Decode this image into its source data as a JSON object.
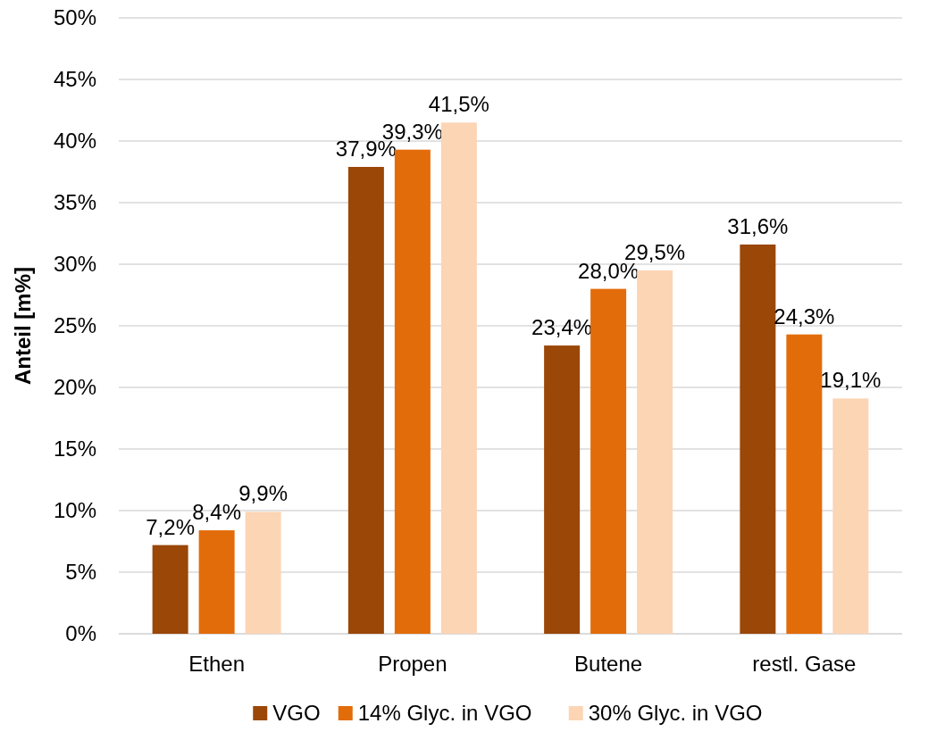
{
  "chart_data": {
    "type": "bar",
    "ylabel": "Anteil [m%]",
    "categories": [
      "Ethen",
      "Propen",
      "Butene",
      "restl. Gase"
    ],
    "series": [
      {
        "name": "VGO",
        "color": "#9a4708",
        "values": [
          7.2,
          37.9,
          23.4,
          31.6
        ],
        "value_labels": [
          "7,2%",
          "37,9%",
          "23,4%",
          "31,6%"
        ]
      },
      {
        "name": "14% Glyc. in VGO",
        "color": "#e36c0a",
        "values": [
          8.4,
          39.3,
          28.0,
          24.3
        ],
        "value_labels": [
          "8,4%",
          "39,3%",
          "28,0%",
          "24,3%"
        ]
      },
      {
        "name": "30% Glyc. in VGO",
        "color": "#fcd5b5",
        "values": [
          9.9,
          41.5,
          29.5,
          19.1
        ],
        "value_labels": [
          "9,9%",
          "41,5%",
          "29,5%",
          "19,1%"
        ]
      }
    ],
    "ylim": [
      0,
      50
    ],
    "yticks": [
      {
        "value": 0,
        "label": "0%"
      },
      {
        "value": 5,
        "label": "5%"
      },
      {
        "value": 10,
        "label": "10%"
      },
      {
        "value": 15,
        "label": "15%"
      },
      {
        "value": 20,
        "label": "20%"
      },
      {
        "value": 25,
        "label": "25%"
      },
      {
        "value": 30,
        "label": "30%"
      },
      {
        "value": 35,
        "label": "35%"
      },
      {
        "value": 40,
        "label": "40%"
      },
      {
        "value": 45,
        "label": "45%"
      },
      {
        "value": 50,
        "label": "50%"
      }
    ],
    "grid": "y",
    "legend": "bottom"
  }
}
